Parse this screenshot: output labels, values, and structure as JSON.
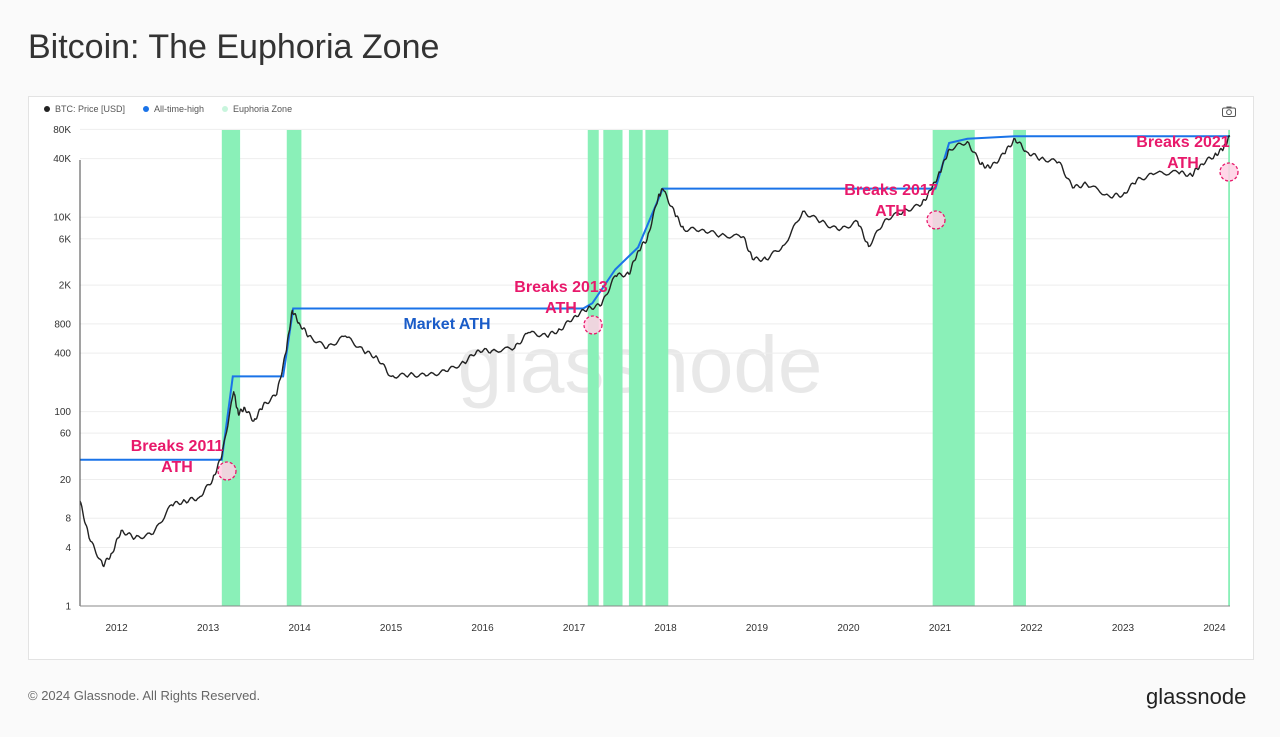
{
  "page": {
    "title": "Bitcoin: The Euphoria Zone",
    "copyright": "© 2024 Glassnode. All Rights Reserved.",
    "brand": "glassnode",
    "watermark": "glassnode"
  },
  "legend": [
    {
      "label": "BTC: Price [USD]",
      "color": "#222222"
    },
    {
      "label": "All-time-high",
      "color": "#1a73e8"
    },
    {
      "label": "Euphoria Zone",
      "color": "#c8f5dd"
    }
  ],
  "colors": {
    "price": "#222222",
    "ath": "#1a73e8",
    "euphoria": "#8af0b8",
    "annotation": "#e8196b",
    "grid": "#eeeeee"
  },
  "icons": {
    "camera": "camera-icon"
  },
  "chart_data": {
    "type": "line",
    "y_scale": "log",
    "ylim": [
      1,
      100000
    ],
    "xlim": [
      2011.6,
      2024.17
    ],
    "x_ticks": [
      2012,
      2013,
      2014,
      2015,
      2016,
      2017,
      2018,
      2019,
      2020,
      2021,
      2022,
      2023,
      2024
    ],
    "y_ticks": [
      {
        "value": 1,
        "label": "1"
      },
      {
        "value": 4,
        "label": "4"
      },
      {
        "value": 8,
        "label": "8"
      },
      {
        "value": 20,
        "label": "20"
      },
      {
        "value": 60,
        "label": "60"
      },
      {
        "value": 100,
        "label": "100"
      },
      {
        "value": 400,
        "label": "400"
      },
      {
        "value": 800,
        "label": "800"
      },
      {
        "value": 2000,
        "label": "2K"
      },
      {
        "value": 6000,
        "label": "6K"
      },
      {
        "value": 10000,
        "label": "10K"
      },
      {
        "value": 40000,
        "label": "40K"
      },
      {
        "value": 80000,
        "label": "80K"
      }
    ],
    "series": [
      {
        "name": "BTC: Price [USD]",
        "points": [
          [
            2011.6,
            12
          ],
          [
            2011.7,
            5
          ],
          [
            2011.85,
            2.6
          ],
          [
            2011.95,
            3.5
          ],
          [
            2012.05,
            6
          ],
          [
            2012.2,
            5
          ],
          [
            2012.4,
            5.5
          ],
          [
            2012.6,
            11
          ],
          [
            2012.75,
            12
          ],
          [
            2012.9,
            13
          ],
          [
            2013.05,
            20
          ],
          [
            2013.15,
            35
          ],
          [
            2013.28,
            160
          ],
          [
            2013.33,
            95
          ],
          [
            2013.4,
            110
          ],
          [
            2013.5,
            80
          ],
          [
            2013.6,
            115
          ],
          [
            2013.75,
            150
          ],
          [
            2013.85,
            400
          ],
          [
            2013.92,
            1100
          ],
          [
            2014.0,
            800
          ],
          [
            2014.1,
            600
          ],
          [
            2014.3,
            450
          ],
          [
            2014.5,
            600
          ],
          [
            2014.7,
            420
          ],
          [
            2014.85,
            360
          ],
          [
            2015.0,
            230
          ],
          [
            2015.2,
            240
          ],
          [
            2015.4,
            235
          ],
          [
            2015.6,
            260
          ],
          [
            2015.8,
            320
          ],
          [
            2015.95,
            430
          ],
          [
            2016.1,
            420
          ],
          [
            2016.35,
            450
          ],
          [
            2016.5,
            650
          ],
          [
            2016.7,
            600
          ],
          [
            2016.85,
            700
          ],
          [
            2017.0,
            950
          ],
          [
            2017.15,
            1150
          ],
          [
            2017.3,
            1250
          ],
          [
            2017.45,
            2500
          ],
          [
            2017.6,
            2600
          ],
          [
            2017.7,
            4500
          ],
          [
            2017.8,
            6000
          ],
          [
            2017.92,
            16000
          ],
          [
            2017.97,
            19500
          ],
          [
            2018.1,
            11000
          ],
          [
            2018.2,
            7500
          ],
          [
            2018.4,
            7500
          ],
          [
            2018.6,
            6500
          ],
          [
            2018.85,
            6300
          ],
          [
            2018.95,
            3700
          ],
          [
            2019.1,
            3700
          ],
          [
            2019.3,
            5200
          ],
          [
            2019.5,
            11500
          ],
          [
            2019.7,
            9000
          ],
          [
            2019.9,
            7300
          ],
          [
            2020.1,
            9000
          ],
          [
            2020.22,
            5000
          ],
          [
            2020.4,
            9500
          ],
          [
            2020.6,
            11500
          ],
          [
            2020.8,
            13500
          ],
          [
            2020.9,
            19000
          ],
          [
            2021.0,
            29000
          ],
          [
            2021.1,
            50000
          ],
          [
            2021.3,
            60000
          ],
          [
            2021.45,
            35000
          ],
          [
            2021.55,
            32000
          ],
          [
            2021.7,
            45000
          ],
          [
            2021.82,
            64000
          ],
          [
            2021.95,
            47000
          ],
          [
            2022.1,
            40000
          ],
          [
            2022.3,
            37000
          ],
          [
            2022.45,
            20000
          ],
          [
            2022.6,
            22000
          ],
          [
            2022.85,
            16500
          ],
          [
            2023.0,
            17000
          ],
          [
            2023.15,
            24000
          ],
          [
            2023.35,
            28000
          ],
          [
            2023.6,
            29000
          ],
          [
            2023.75,
            27000
          ],
          [
            2023.85,
            35000
          ],
          [
            2024.0,
            43000
          ],
          [
            2024.1,
            51000
          ],
          [
            2024.17,
            69000
          ]
        ]
      },
      {
        "name": "All-time-high",
        "points": [
          [
            2011.6,
            32
          ],
          [
            2013.15,
            32
          ],
          [
            2013.27,
            230
          ],
          [
            2013.82,
            230
          ],
          [
            2013.93,
            1150
          ],
          [
            2017.1,
            1150
          ],
          [
            2017.2,
            1300
          ],
          [
            2017.45,
            2900
          ],
          [
            2017.7,
            4900
          ],
          [
            2017.97,
            19700
          ],
          [
            2020.95,
            19700
          ],
          [
            2021.1,
            58000
          ],
          [
            2021.3,
            64000
          ],
          [
            2021.82,
            68000
          ],
          [
            2024.17,
            68000
          ]
        ]
      }
    ],
    "euphoria_zones": [
      [
        2013.15,
        2013.35
      ],
      [
        2013.86,
        2014.02
      ],
      [
        2017.15,
        2017.27
      ],
      [
        2017.32,
        2017.53
      ],
      [
        2017.6,
        2017.75
      ],
      [
        2017.78,
        2018.03
      ],
      [
        2020.92,
        2021.38
      ],
      [
        2021.8,
        2021.94
      ],
      [
        2024.15,
        2024.17
      ]
    ],
    "annotations": [
      {
        "text": [
          "Breaks 2011",
          "ATH"
        ],
        "x": 2013.15,
        "y": 32,
        "color": "#e8196b"
      },
      {
        "text": [
          "Market ATH"
        ],
        "x": 2015.8,
        "y": 1150,
        "color": "#1a5cc8"
      },
      {
        "text": [
          "Breaks 2013",
          "ATH"
        ],
        "x": 2017.15,
        "y": 1150,
        "color": "#e8196b"
      },
      {
        "text": [
          "Breaks 2017",
          "ATH"
        ],
        "x": 2020.95,
        "y": 19700,
        "color": "#e8196b"
      },
      {
        "text": [
          "Breaks 2021",
          "ATH"
        ],
        "x": 2024.15,
        "y": 68000,
        "color": "#e8196b"
      }
    ]
  }
}
